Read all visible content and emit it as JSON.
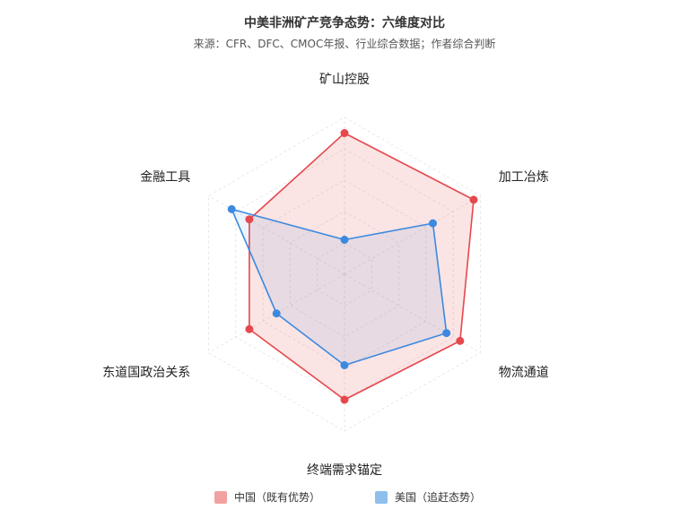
{
  "chart_data": {
    "type": "radar",
    "title": "中美非洲矿产竞争态势：六维度对比",
    "subtitle": "来源：CFR、DFC、CMOC年报、行业综合数据；作者综合判断",
    "axes": [
      "矿山控股",
      "加工冶炼",
      "物流通道",
      "终端需求锚定",
      "东道国政治关系",
      "金融工具"
    ],
    "range": [
      0,
      10
    ],
    "grid_levels": 5,
    "series": [
      {
        "name": "中国（既有优势）",
        "values": [
          9,
          9.5,
          8.5,
          8,
          7,
          7
        ],
        "color": "#e5484d"
      },
      {
        "name": "美国（追赶态势）",
        "values": [
          2.2,
          6.5,
          7.5,
          5.8,
          5,
          8.3
        ],
        "color": "#3b8ae0"
      }
    ],
    "legend_position": "bottom"
  }
}
